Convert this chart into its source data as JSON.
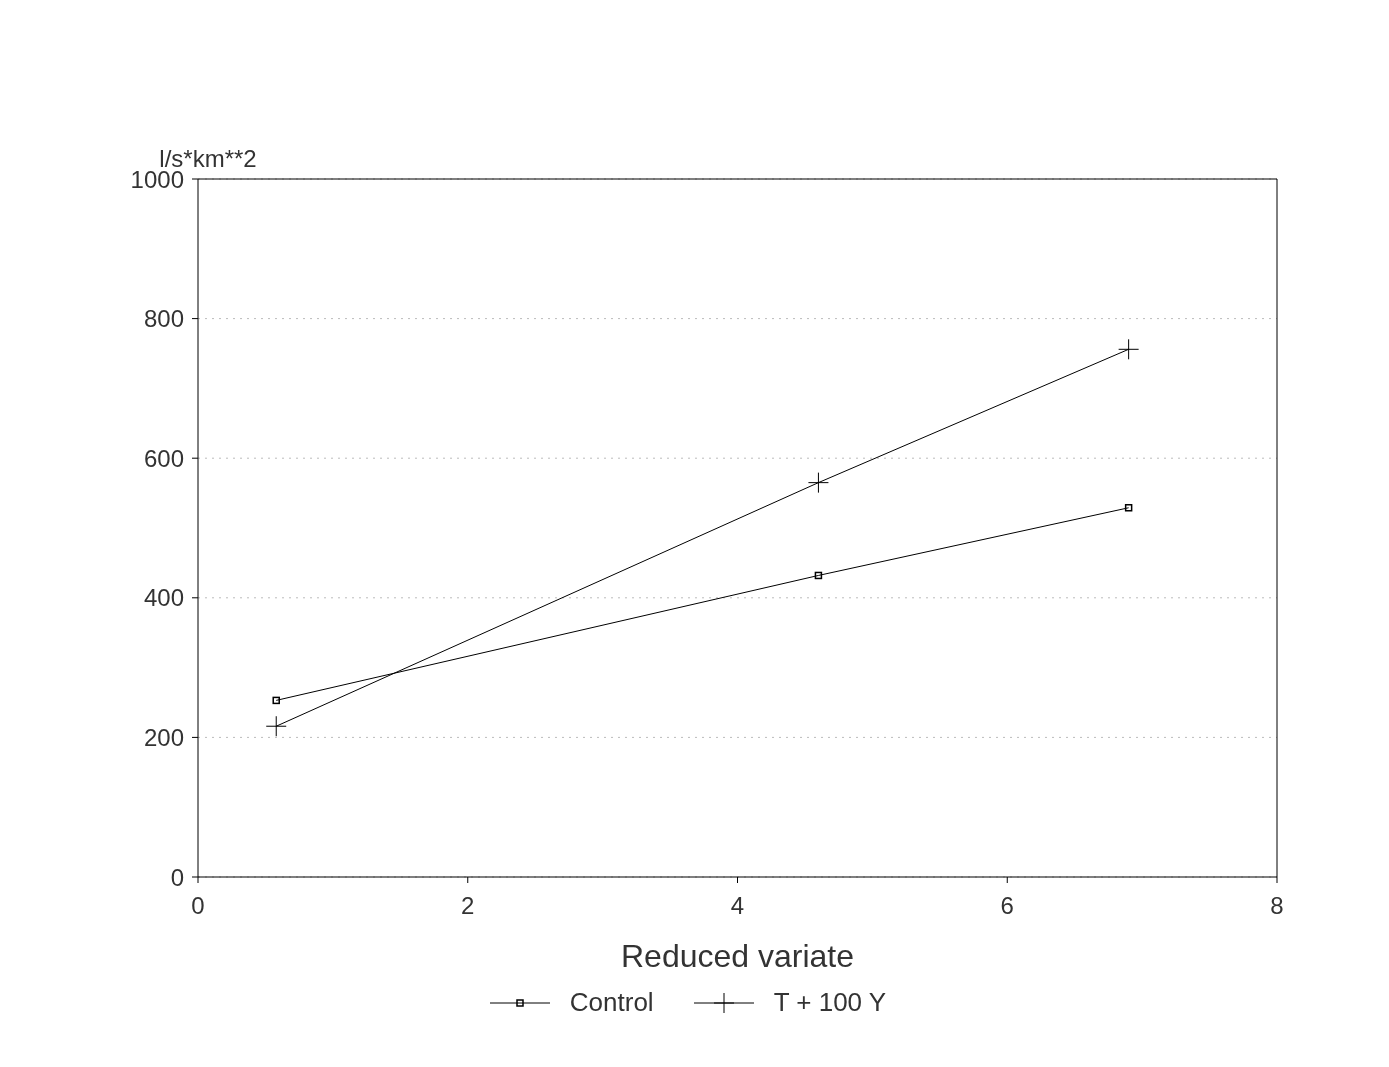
{
  "chart_data": {
    "type": "line",
    "xlabel": "Reduced variate",
    "ylabel": "l/s*km**2",
    "xlim": [
      0,
      8
    ],
    "xticks": [
      0,
      2,
      4,
      6,
      8
    ],
    "ylim": [
      0,
      1000
    ],
    "yticks": [
      0,
      200,
      400,
      600,
      800,
      1000
    ],
    "grid": "y",
    "legend": "bottom",
    "series": [
      {
        "name": "Control",
        "color": "#000000",
        "marker": "square",
        "x": [
          0.58,
          4.6,
          6.9
        ],
        "values": [
          253,
          432,
          529
        ]
      },
      {
        "name": "T + 100 Y",
        "color": "#000000",
        "marker": "cross",
        "x": [
          0.58,
          4.6,
          6.9
        ],
        "values": [
          216,
          565,
          756
        ]
      }
    ]
  }
}
